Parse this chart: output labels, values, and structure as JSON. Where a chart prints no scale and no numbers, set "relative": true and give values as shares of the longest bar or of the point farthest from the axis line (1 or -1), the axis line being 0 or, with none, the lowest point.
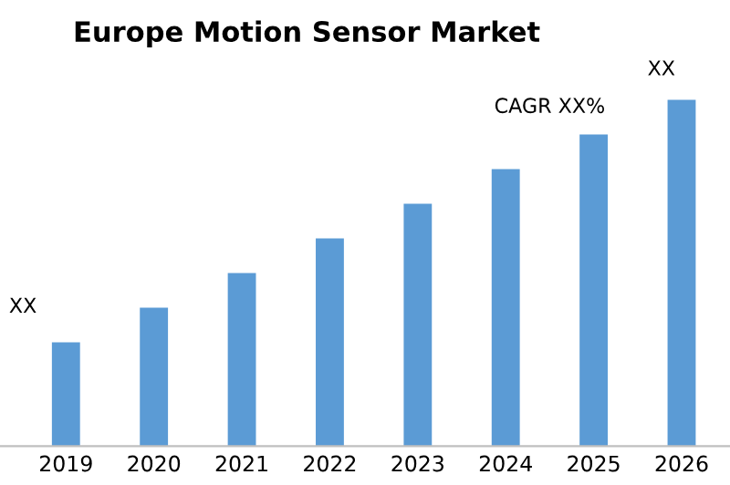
{
  "chart_data": {
    "type": "bar",
    "title": "Europe Motion Sensor Market",
    "relative": true,
    "categories": [
      "2019",
      "2020",
      "2021",
      "2022",
      "2023",
      "2024",
      "2025",
      "2026"
    ],
    "values": [
      0.3,
      0.4,
      0.5,
      0.6,
      0.7,
      0.8,
      0.9,
      1.0
    ],
    "color": "#5b9bd5",
    "grid": false,
    "legend": false,
    "annotations": [
      {
        "text": "XX",
        "x": "2019",
        "y": 0.3
      },
      "CAGR XX%",
      {
        "text": "XX",
        "x": "2026",
        "y": 1.0
      }
    ]
  }
}
